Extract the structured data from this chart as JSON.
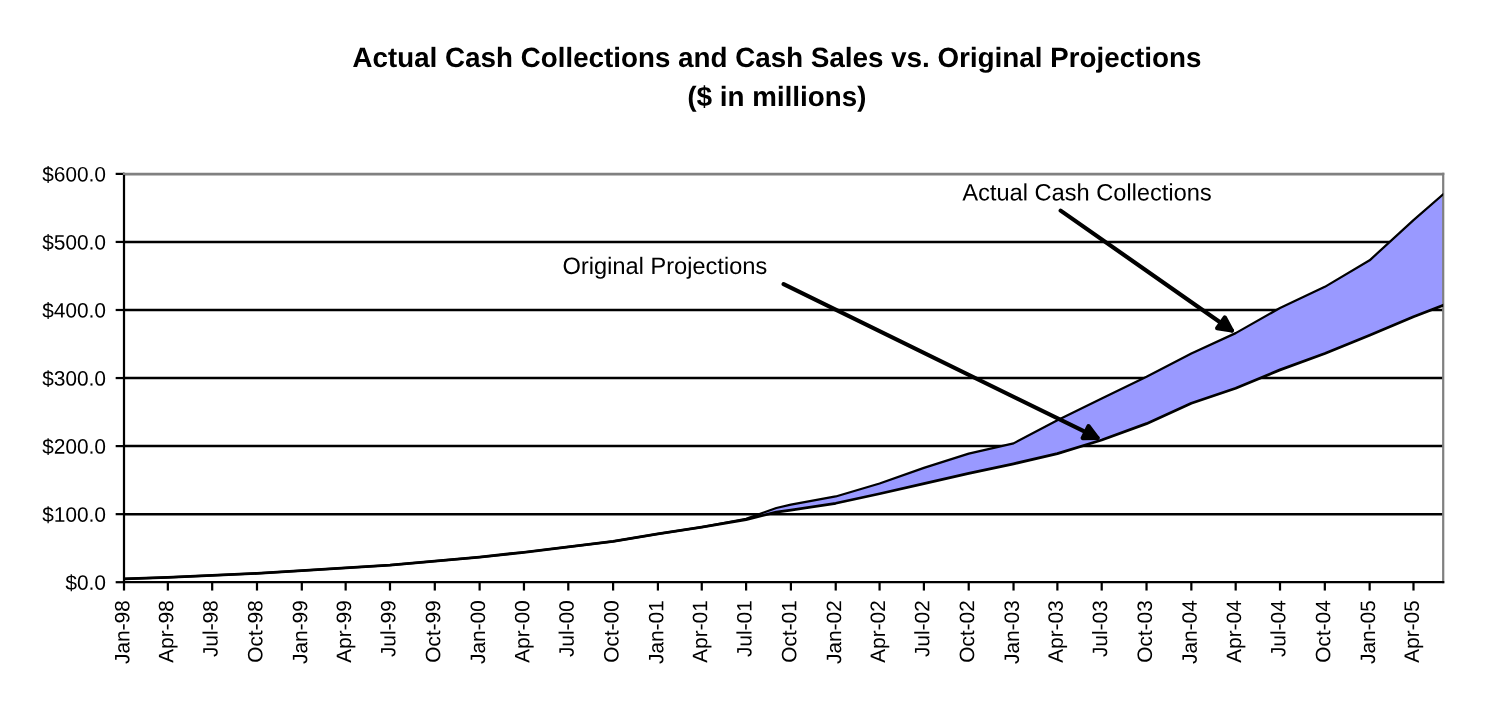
{
  "chart_data": {
    "type": "line",
    "title": "Actual Cash Collections and Cash Sales vs. Original Projections",
    "subtitle": "($ in millions)",
    "x": [
      "1998-01",
      "1998-04",
      "1998-07",
      "1998-10",
      "1999-01",
      "1999-04",
      "1999-07",
      "1999-10",
      "2000-01",
      "2000-04",
      "2000-07",
      "2000-10",
      "2001-01",
      "2001-04",
      "2001-07",
      "2001-09",
      "2001-10",
      "2002-01",
      "2002-04",
      "2002-07",
      "2002-10",
      "2003-01",
      "2003-04",
      "2003-07",
      "2003-10",
      "2004-01",
      "2004-04",
      "2004-07",
      "2004-10",
      "2005-01",
      "2005-04",
      "2005-06"
    ],
    "series": [
      {
        "color": "#000000",
        "values": [
          5,
          7,
          10,
          13,
          17,
          21,
          25,
          31,
          37,
          44,
          52,
          60,
          71,
          81,
          92,
          103,
          106,
          116,
          130,
          145,
          160,
          174,
          189,
          209,
          233,
          263,
          285,
          312,
          336,
          363,
          390,
          407
        ]
      },
      {
        "type": "area",
        "color": "#9999ff",
        "values": [
          5,
          7,
          10,
          13,
          17,
          21,
          25,
          31,
          37,
          44,
          52,
          60,
          71,
          81,
          93,
          109,
          114,
          126,
          145,
          168,
          189,
          204,
          238,
          270,
          302,
          336,
          366,
          403,
          434,
          473,
          532,
          570
        ]
      }
    ],
    "xlim": [
      "1998-01",
      "2005-06"
    ],
    "xticks": [
      {
        "value": "1998-01",
        "label": "Jan-98"
      },
      {
        "value": "1998-04",
        "label": "Apr-98"
      },
      {
        "value": "1998-07",
        "label": "Jul-98"
      },
      {
        "value": "1998-10",
        "label": "Oct-98"
      },
      {
        "value": "1999-01",
        "label": "Jan-99"
      },
      {
        "value": "1999-04",
        "label": "Apr-99"
      },
      {
        "value": "1999-07",
        "label": "Jul-99"
      },
      {
        "value": "1999-10",
        "label": "Oct-99"
      },
      {
        "value": "2000-01",
        "label": "Jan-00"
      },
      {
        "value": "2000-04",
        "label": "Apr-00"
      },
      {
        "value": "2000-07",
        "label": "Jul-00"
      },
      {
        "value": "2000-10",
        "label": "Oct-00"
      },
      {
        "value": "2001-01",
        "label": "Jan-01"
      },
      {
        "value": "2001-04",
        "label": "Apr-01"
      },
      {
        "value": "2001-07",
        "label": "Jul-01"
      },
      {
        "value": "2001-10",
        "label": "Oct-01"
      },
      {
        "value": "2002-01",
        "label": "Jan-02"
      },
      {
        "value": "2002-04",
        "label": "Apr-02"
      },
      {
        "value": "2002-07",
        "label": "Jul-02"
      },
      {
        "value": "2002-10",
        "label": "Oct-02"
      },
      {
        "value": "2003-01",
        "label": "Jan-03"
      },
      {
        "value": "2003-04",
        "label": "Apr-03"
      },
      {
        "value": "2003-07",
        "label": "Jul-03"
      },
      {
        "value": "2003-10",
        "label": "Oct-03"
      },
      {
        "value": "2004-01",
        "label": "Jan-04"
      },
      {
        "value": "2004-04",
        "label": "Apr-04"
      },
      {
        "value": "2004-07",
        "label": "Jul-04"
      },
      {
        "value": "2004-10",
        "label": "Oct-04"
      },
      {
        "value": "2005-01",
        "label": "Jan-05"
      },
      {
        "value": "2005-04",
        "label": "Apr-05"
      }
    ],
    "ylim": [
      0,
      600
    ],
    "yticks": [
      {
        "value": 0,
        "label": "$0.0"
      },
      {
        "value": 100,
        "label": "$100.0"
      },
      {
        "value": 200,
        "label": "$200.0"
      },
      {
        "value": 300,
        "label": "$300.0"
      },
      {
        "value": 400,
        "label": "$400.0"
      },
      {
        "value": 500,
        "label": "$500.0"
      },
      {
        "value": 600,
        "label": "$600.0"
      }
    ],
    "grid": "y",
    "marker": "none",
    "line_style": "solid",
    "annotations": [
      {
        "text": "Actual Cash Collections",
        "x": "2004-04",
        "y": 366
      },
      {
        "text": "Original Projections",
        "x": "2003-07",
        "y": 209
      }
    ]
  }
}
